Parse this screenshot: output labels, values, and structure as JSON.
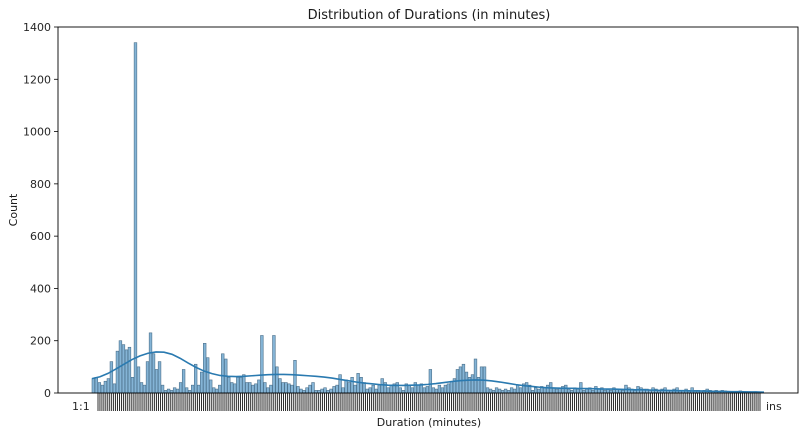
{
  "chart_data": {
    "type": "bar",
    "title": "Distribution of Durations (in minutes)",
    "xlabel": "Duration (minutes)",
    "ylabel": "Count",
    "ylim": [
      0,
      1400
    ],
    "yticks": [
      0,
      200,
      400,
      600,
      800,
      1000,
      1200,
      1400
    ],
    "x_tick_text_left": "1:1",
    "x_tick_text_right": "ins",
    "bar_color": "#1f77b4",
    "kde_color": "#2a7ab0",
    "values": [
      55,
      60,
      40,
      30,
      45,
      55,
      120,
      35,
      160,
      200,
      185,
      165,
      175,
      60,
      1340,
      100,
      40,
      30,
      120,
      230,
      150,
      90,
      120,
      30,
      10,
      15,
      10,
      20,
      15,
      40,
      90,
      20,
      10,
      30,
      110,
      30,
      80,
      190,
      135,
      50,
      20,
      15,
      30,
      150,
      130,
      60,
      40,
      35,
      60,
      60,
      70,
      40,
      40,
      30,
      35,
      50,
      220,
      40,
      20,
      30,
      220,
      100,
      55,
      40,
      40,
      35,
      30,
      125,
      25,
      15,
      10,
      20,
      30,
      40,
      10,
      10,
      15,
      20,
      10,
      15,
      25,
      30,
      70,
      20,
      50,
      40,
      60,
      30,
      75,
      60,
      40,
      15,
      20,
      30,
      15,
      30,
      55,
      40,
      20,
      30,
      35,
      40,
      20,
      10,
      35,
      30,
      20,
      40,
      30,
      35,
      20,
      25,
      90,
      20,
      15,
      30,
      20,
      30,
      35,
      45,
      55,
      90,
      100,
      110,
      80,
      60,
      70,
      130,
      60,
      100,
      100,
      20,
      15,
      10,
      20,
      15,
      10,
      15,
      10,
      20,
      15,
      30,
      20,
      35,
      40,
      30,
      10,
      20,
      15,
      25,
      20,
      30,
      40,
      20,
      15,
      20,
      25,
      30,
      15,
      10,
      20,
      15,
      40,
      10,
      15,
      20,
      10,
      25,
      15,
      20,
      10,
      15,
      10,
      20,
      15,
      15,
      10,
      30,
      20,
      15,
      10,
      25,
      20,
      15,
      15,
      10,
      20,
      15,
      10,
      15,
      20,
      10,
      10,
      15,
      20,
      10,
      10,
      15,
      10,
      20,
      10,
      10,
      8,
      10,
      15,
      10,
      8,
      10,
      5,
      10,
      8,
      5,
      5,
      6,
      5,
      8,
      5,
      5,
      5,
      4,
      5,
      4
    ],
    "kde": [
      55,
      62,
      75,
      92,
      110,
      128,
      142,
      152,
      157,
      156,
      148,
      133,
      115,
      98,
      84,
      74,
      67,
      64,
      63,
      64,
      66,
      68,
      70,
      71,
      71,
      70,
      68,
      66,
      64,
      61,
      57,
      52,
      47,
      42,
      38,
      35,
      32,
      30,
      29,
      29,
      30,
      31,
      33,
      36,
      40,
      44,
      47,
      49,
      50,
      49,
      46,
      42,
      37,
      32,
      28,
      25,
      22,
      20,
      19,
      18,
      18,
      17,
      17,
      16,
      15,
      15,
      14,
      13,
      12,
      12,
      11,
      10,
      10,
      9,
      9,
      8,
      8,
      7,
      6,
      6,
      5,
      5,
      4,
      4,
      3
    ]
  }
}
